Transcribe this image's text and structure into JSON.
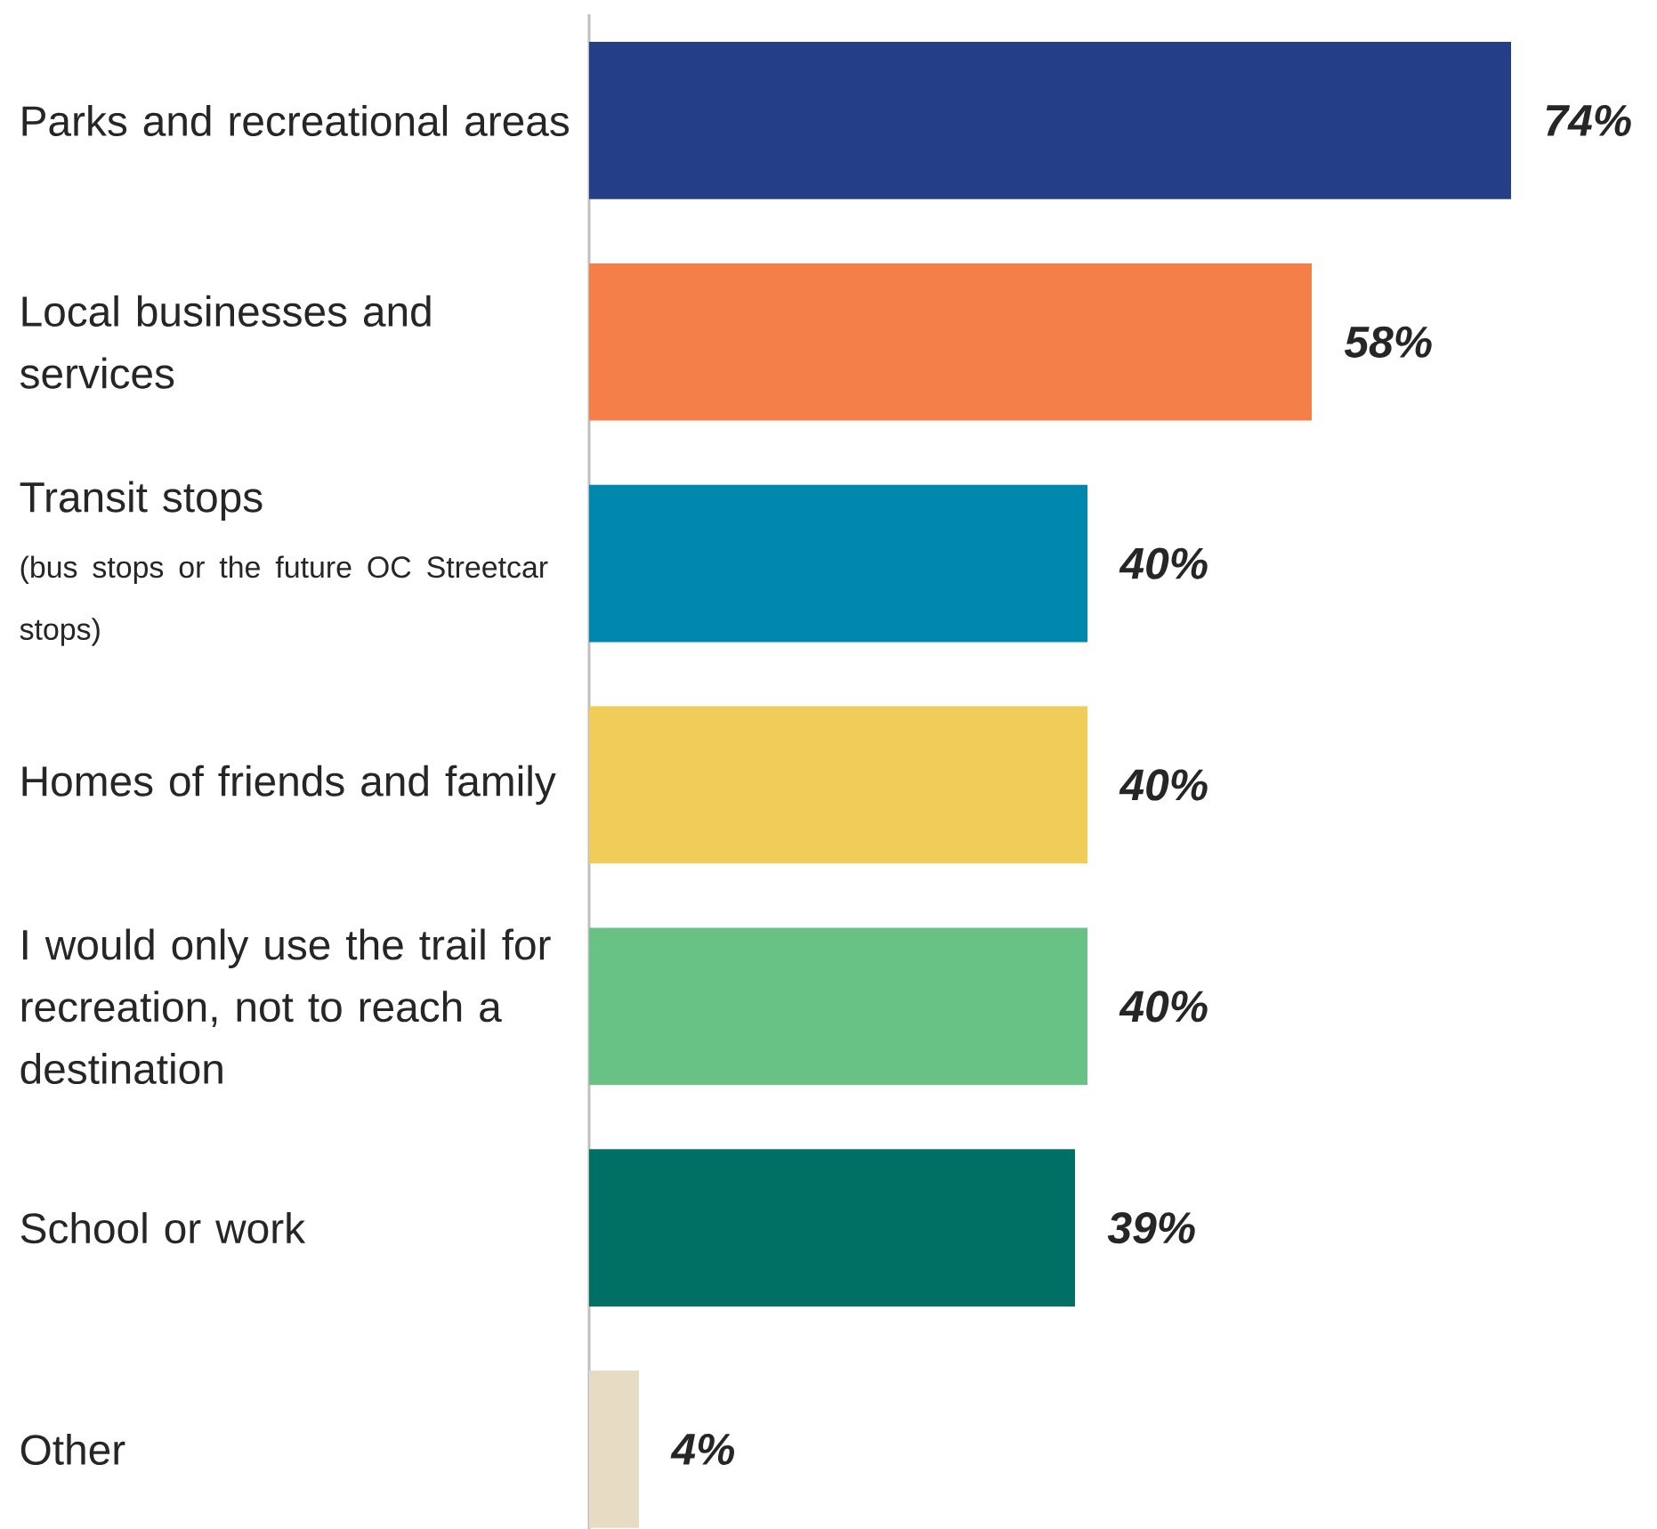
{
  "chart_data": {
    "type": "bar",
    "orientation": "horizontal",
    "categories": [
      "Parks and recreational areas",
      "Local businesses and services",
      "Transit stops",
      "Homes of friends and family",
      "I would only use the trail for recreation, not to reach a destination",
      "School or work",
      "Other"
    ],
    "values": [
      74,
      58,
      40,
      40,
      40,
      39,
      4
    ],
    "colors": [
      "#243e87",
      "#f47f48",
      "#0087ad",
      "#f0cd58",
      "#68c285",
      "#007064",
      "#e5dcc3"
    ],
    "value_labels": [
      "74%",
      "58%",
      "40%",
      "40%",
      "40%",
      "39%",
      "4%"
    ],
    "annotations": [
      "(bus stops or the future OC Streetcar stops)"
    ],
    "relative": false
  }
}
